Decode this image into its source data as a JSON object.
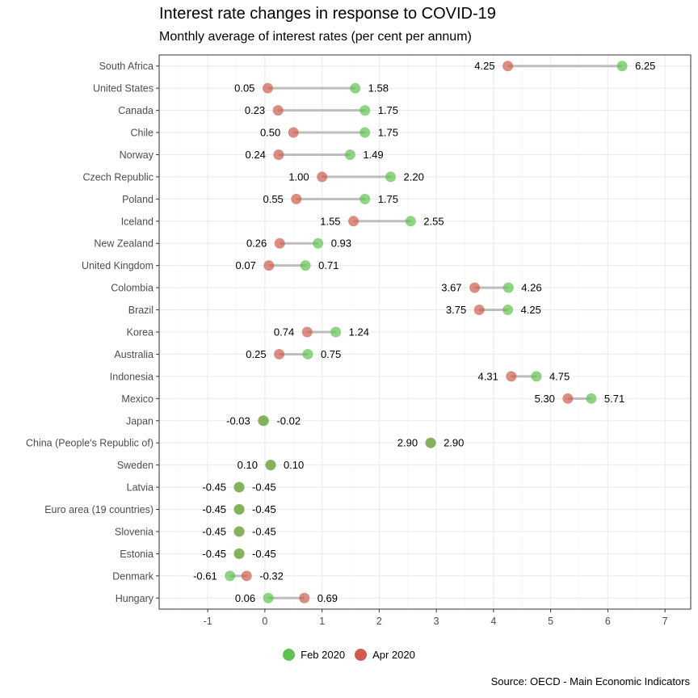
{
  "chart_data": {
    "type": "dumbbell",
    "title": "Interest rate changes in response to COVID-19",
    "subtitle": "Monthly average of interest rates (per cent per annum)",
    "caption": "Source: OECD - Main Economic Indicators",
    "xlim": [
      -1.85,
      7.45
    ],
    "x_ticks": [
      -1,
      0,
      1,
      2,
      3,
      4,
      5,
      6,
      7
    ],
    "grid": true,
    "legend_position": "bottom",
    "series": [
      {
        "name": "Feb 2020",
        "color": "#5ec24f"
      },
      {
        "name": "Apr 2020",
        "color": "#cd5c4c"
      }
    ],
    "overlap_color": "#9a7a4a",
    "categories": [
      "South Africa",
      "United States",
      "Canada",
      "Chile",
      "Norway",
      "Czech Republic",
      "Poland",
      "Iceland",
      "New Zealand",
      "United Kingdom",
      "Colombia",
      "Brazil",
      "Korea",
      "Australia",
      "Indonesia",
      "Mexico",
      "Japan",
      "China (People's Republic of)",
      "Sweden",
      "Latvia",
      "Euro area (19 countries)",
      "Slovenia",
      "Estonia",
      "Denmark",
      "Hungary"
    ],
    "feb": [
      6.25,
      1.58,
      1.75,
      1.75,
      1.49,
      2.2,
      1.75,
      2.55,
      0.93,
      0.71,
      4.26,
      4.25,
      1.24,
      0.75,
      4.75,
      5.71,
      -0.02,
      2.9,
      0.1,
      -0.45,
      -0.45,
      -0.45,
      -0.45,
      -0.61,
      0.06
    ],
    "apr": [
      4.25,
      0.05,
      0.23,
      0.5,
      0.24,
      1.0,
      0.55,
      1.55,
      0.26,
      0.07,
      3.67,
      3.75,
      0.74,
      0.25,
      4.31,
      5.3,
      -0.03,
      2.9,
      0.1,
      -0.45,
      -0.45,
      -0.45,
      -0.45,
      -0.32,
      0.69
    ],
    "feb_labels": [
      "6.25",
      "1.58",
      "1.75",
      "1.75",
      "1.49",
      "2.20",
      "1.75",
      "2.55",
      "0.93",
      "0.71",
      "4.26",
      "4.25",
      "1.24",
      "0.75",
      "4.75",
      "5.71",
      "-0.02",
      "2.90",
      "0.10",
      "-0.45",
      "-0.45",
      "-0.45",
      "-0.45",
      "-0.61",
      "0.06"
    ],
    "apr_labels": [
      "4.25",
      "0.05",
      "0.23",
      "0.50",
      "0.24",
      "1.00",
      "0.55",
      "1.55",
      "0.26",
      "0.07",
      "3.67",
      "3.75",
      "0.74",
      "0.25",
      "4.31",
      "5.30",
      "-0.03",
      "2.90",
      "0.10",
      "-0.45",
      "-0.45",
      "-0.45",
      "-0.45",
      "-0.32",
      "0.69"
    ]
  }
}
